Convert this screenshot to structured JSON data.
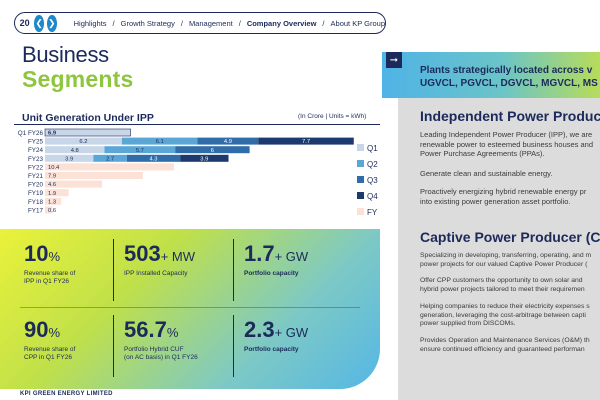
{
  "nav": {
    "page_number": "20",
    "prev_icon": "chevron-left",
    "next_icon": "chevron-right",
    "breadcrumbs": [
      "Highlights",
      "Growth Strategy",
      "Management",
      "Company Overview",
      "About KP Group"
    ],
    "separator": "/"
  },
  "heading": {
    "line1": "Business",
    "line2": "Segments"
  },
  "chart_section": {
    "title": "Unit Generation Under IPP",
    "unit_note": "(In Crore | Units = kWh)"
  },
  "chart_data": {
    "type": "bar",
    "orientation": "horizontal-stacked",
    "categories": [
      "Q1 FY26",
      "FY25",
      "FY24",
      "FY23",
      "FY22",
      "FY21",
      "FY20",
      "FY19",
      "FY18",
      "FY17"
    ],
    "series": [
      {
        "name": "Q1",
        "color": "#c7d6e8",
        "values": [
          6.9,
          6.2,
          4.8,
          3.9,
          null,
          null,
          null,
          null,
          null,
          null
        ]
      },
      {
        "name": "Q2",
        "color": "#5aa6d6",
        "values": [
          null,
          6.1,
          5.7,
          2.7,
          null,
          null,
          null,
          null,
          null,
          null
        ]
      },
      {
        "name": "Q3",
        "color": "#2f6ca8",
        "values": [
          null,
          4.9,
          6,
          4.3,
          null,
          null,
          null,
          null,
          null,
          null
        ]
      },
      {
        "name": "Q4",
        "color": "#1c3a6e",
        "values": [
          null,
          7.7,
          null,
          null,
          null,
          null,
          null,
          null,
          null,
          null
        ]
      },
      {
        "name": "FY",
        "color": "#fbe1d6",
        "values": [
          null,
          null,
          null,
          null,
          10.4,
          7.9,
          4.6,
          1.9,
          1.3,
          0.6
        ]
      }
    ],
    "data_labels": {
      "Q1 FY26": [
        "6.9"
      ],
      "FY25": [
        "6.2",
        "6.1",
        "4.9",
        "7.7"
      ],
      "FY24": [
        "4.8",
        "5.7",
        "6"
      ],
      "FY23": [
        "3.9",
        "2.7",
        "4.3",
        "3.9"
      ],
      "FY22": [
        "10.4"
      ],
      "FY21": [
        "7.9"
      ],
      "FY20": [
        "4.6"
      ],
      "FY19": [
        "1.9"
      ],
      "FY18": [
        "1.3"
      ],
      "FY17": [
        "0.6"
      ]
    },
    "fy23_q4": 3.9,
    "legend": [
      "Q1",
      "Q2",
      "Q3",
      "Q4",
      "FY"
    ],
    "legend_position": "right"
  },
  "metrics": [
    {
      "value": "10",
      "unit": "%",
      "label": [
        "Revenue share of",
        "IPP in Q1 FY26"
      ],
      "bold": false
    },
    {
      "value": "503",
      "unit": "+ MW",
      "label": [
        "IPP Installed Capacity"
      ],
      "bold": false
    },
    {
      "value": "1.7",
      "unit": "+ GW",
      "label": [
        "Portfolio capacity"
      ],
      "bold": true
    },
    {
      "value": "90",
      "unit": "%",
      "label": [
        "Revenue share of",
        "CPP in Q1 FY26"
      ],
      "bold": false
    },
    {
      "value": "56.7",
      "unit": "%",
      "label": [
        "Portfolio Hybrid CUF",
        "(on AC basis) in Q1 FY26"
      ],
      "bold": false
    },
    {
      "value": "2.3",
      "unit": "+ GW",
      "label": [
        "Portfolio capacity"
      ],
      "bold": true
    }
  ],
  "footer": "KPI GREEN ENERGY LIMITED",
  "banner": {
    "line1": "Plants strategically located across v",
    "line2": "UGVCL, PGVCL, DGVCL, MGVCL, MS"
  },
  "ipp": {
    "heading": "Independent Power Produc",
    "paragraphs": [
      [
        "Leading Independent Power Producer (IPP), we are",
        "renewable power to esteemed business houses and",
        "Power Purchase Agreements (PPAs)."
      ],
      [
        "Generate clean and sustainable energy."
      ],
      [
        "Proactively energizing hybrid renewable energy pr",
        "into existing power generation asset portfolio."
      ]
    ]
  },
  "cpp": {
    "heading": "Captive Power Producer (CP",
    "paragraphs": [
      [
        "Specializing in developing, transferring, operating, and m",
        "power projects for our valued Captive Power Producer ("
      ],
      [
        "Offer CPP customers the opportunity to own solar and",
        "hybrid power projects tailored to meet their requiremen"
      ],
      [
        "Helping companies to reduce their electricity expenses s",
        "generation, leveraging the cost-arbitrage between capti",
        "power supplied from DISCOMs."
      ],
      [
        "Provides Operation and Maintenance Services (O&M) th",
        "ensure continued efficiency and guaranteed performan"
      ]
    ]
  }
}
